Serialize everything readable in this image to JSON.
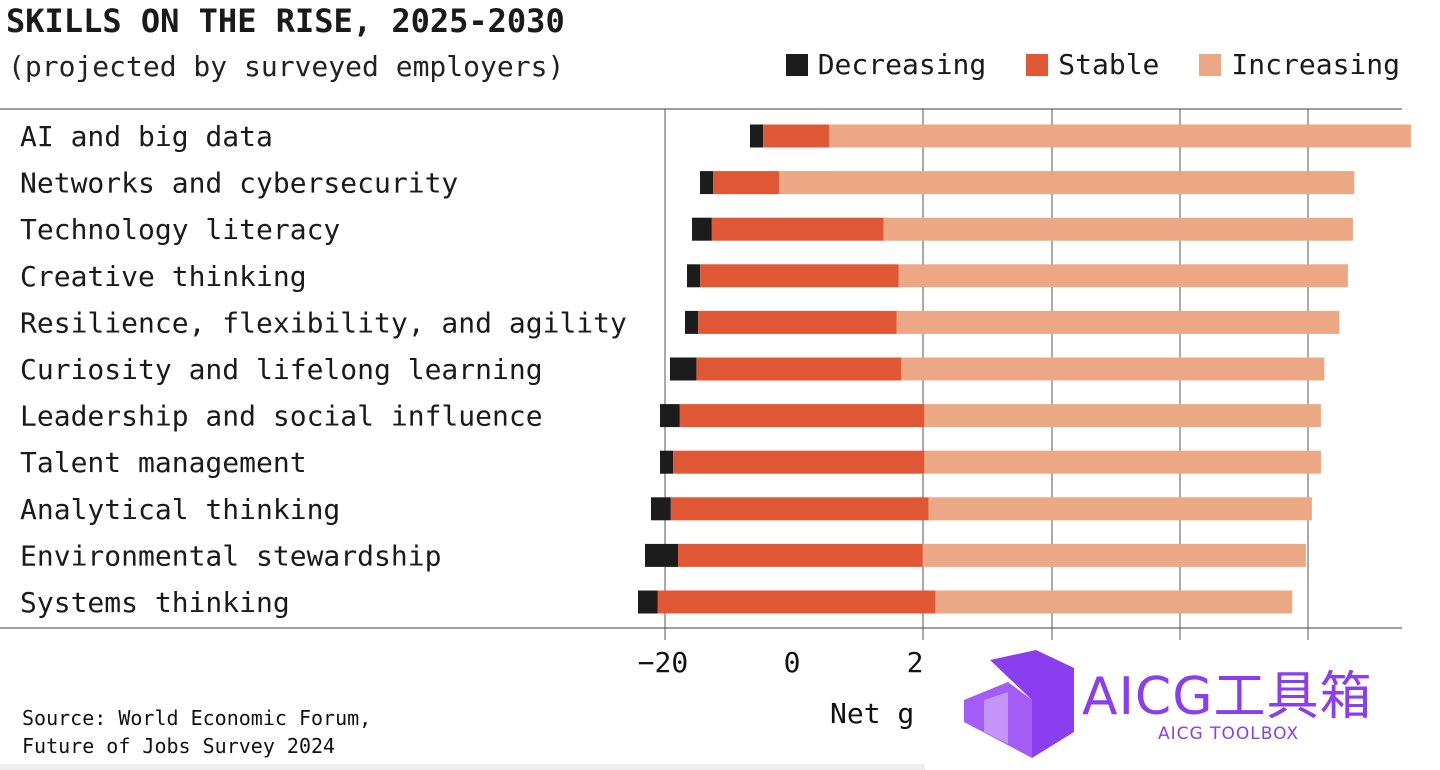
{
  "title": "SKILLS ON THE RISE, 2025-2030",
  "subtitle": "(projected by surveyed employers)",
  "legend": [
    {
      "label": "Decreasing",
      "color": "#1c1c1c"
    },
    {
      "label": "Stable",
      "color": "#df5734"
    },
    {
      "label": "Increasing",
      "color": "#eca885"
    }
  ],
  "source_line1": "Source: World Economic Forum,",
  "source_line2": "Future of Jobs Survey 2024",
  "xlabel_visible": "Net g",
  "watermark": {
    "text": "AICG工具箱",
    "sub": "AICG TOOLBOX"
  },
  "chart_data": {
    "type": "bar",
    "orientation": "horizontal",
    "stacked": true,
    "title": "SKILLS ON THE RISE, 2025-2030",
    "subtitle": "(projected by surveyed employers)",
    "xlabel": "Net g",
    "x_ticks": [
      -20,
      0,
      2
    ],
    "categories": [
      "AI and big data",
      "Networks and cybersecurity",
      "Technology literacy",
      "Creative thinking",
      "Resilience, flexibility, and agility",
      "Curiosity and lifelong learning",
      "Leadership and social influence",
      "Talent management",
      "Analytical thinking",
      "Environmental stewardship",
      "Systems thinking"
    ],
    "series": [
      {
        "name": "Decreasing",
        "color": "#1c1c1c",
        "values": [
          2,
          2,
          3,
          2,
          2,
          4,
          3,
          2,
          3,
          5,
          3
        ]
      },
      {
        "name": "Stable",
        "color": "#df5734",
        "values": [
          10,
          10,
          26,
          30,
          30,
          31,
          37,
          38,
          39,
          37,
          42
        ]
      },
      {
        "name": "Increasing",
        "color": "#eca885",
        "values": [
          88,
          87,
          71,
          68,
          67,
          64,
          60,
          60,
          58,
          58,
          54
        ]
      }
    ],
    "grid": true,
    "legend_position": "top-right"
  }
}
